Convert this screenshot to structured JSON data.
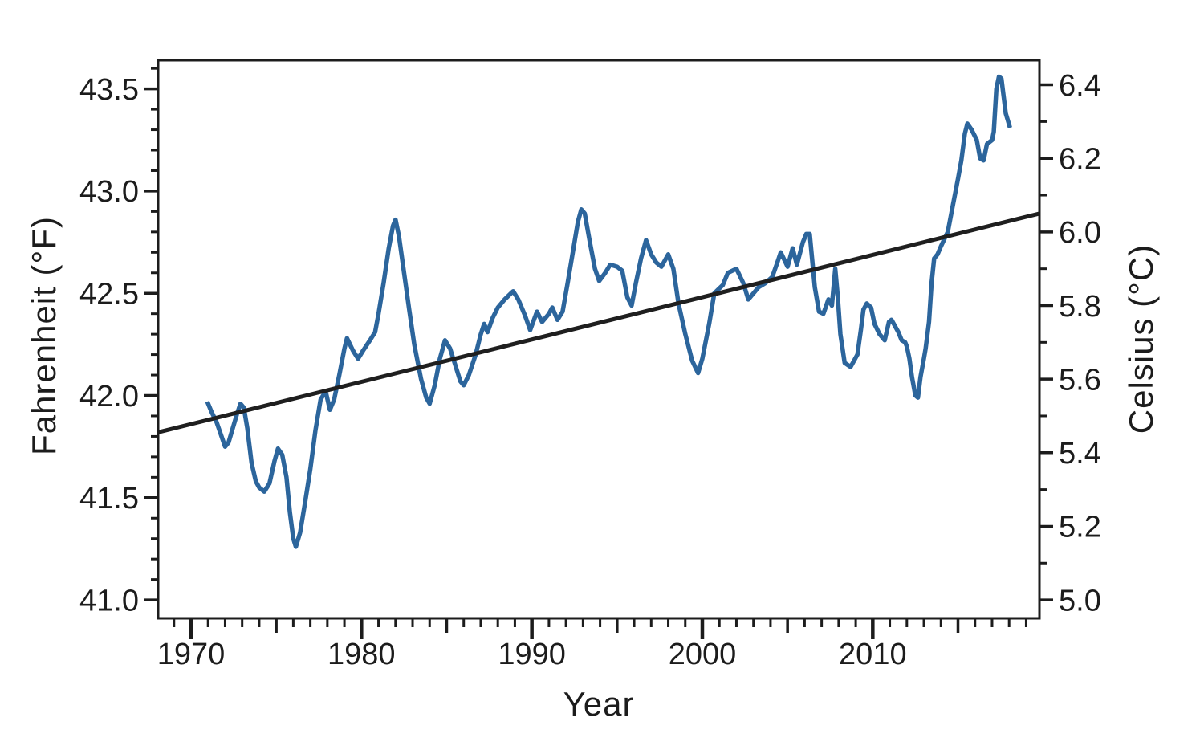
{
  "colors": {
    "background": "#ffffff",
    "axis": "#1c1c1c",
    "text": "#1c1c1c",
    "series_blue": "#2c659c",
    "trend_black": "#1f1f1f"
  },
  "chart_data": {
    "type": "line",
    "title": "",
    "xlabel": "Year",
    "ylabel_left": "Fahrenheit (°F)",
    "ylabel_right": "Celsius (°C)",
    "grid": false,
    "legend": "none",
    "xlim": [
      1968.07,
      2019.78
    ],
    "ylim_fahrenheit": [
      40.91,
      43.64
    ],
    "x_axis": {
      "major_ticks": [
        1970,
        1980,
        1990,
        2000,
        2010
      ],
      "medium_ticks": [
        1975,
        1985,
        1995,
        2005,
        2015
      ],
      "minor_step": 1
    },
    "left_axis": {
      "unit": "°F",
      "major_ticks": [
        41.0,
        41.5,
        42.0,
        42.5,
        43.0,
        43.5
      ],
      "minor_step": 0.1,
      "label_format_decimals": 1
    },
    "right_axis": {
      "unit": "°C",
      "major_ticks": [
        5.0,
        5.2,
        5.4,
        5.6,
        5.8,
        6.0,
        6.2,
        6.4
      ],
      "minor_step": 0.1,
      "label_format_decimals": 1
    },
    "series": [
      {
        "name": "us-temperature-running-mean",
        "color": "#2c659c",
        "width": 5.5,
        "x": [
          1970.95,
          1971.2,
          1971.5,
          1971.75,
          1972.0,
          1972.2,
          1972.45,
          1972.7,
          1972.9,
          1973.1,
          1973.3,
          1973.55,
          1973.8,
          1974.0,
          1974.3,
          1974.6,
          1974.9,
          1975.1,
          1975.35,
          1975.6,
          1975.8,
          1976.0,
          1976.15,
          1976.4,
          1976.7,
          1977.0,
          1977.3,
          1977.6,
          1977.9,
          1978.15,
          1978.4,
          1978.7,
          1979.0,
          1979.15,
          1979.5,
          1979.8,
          1980.1,
          1980.5,
          1980.8,
          1981.0,
          1981.3,
          1981.6,
          1981.85,
          1982.0,
          1982.2,
          1982.5,
          1982.8,
          1983.1,
          1983.5,
          1983.8,
          1984.0,
          1984.3,
          1984.6,
          1984.9,
          1985.2,
          1985.5,
          1985.8,
          1986.0,
          1986.3,
          1986.7,
          1987.0,
          1987.2,
          1987.4,
          1987.7,
          1988.0,
          1988.4,
          1988.9,
          1989.2,
          1989.6,
          1989.9,
          1990.3,
          1990.6,
          1991.0,
          1991.2,
          1991.5,
          1991.8,
          1992.1,
          1992.4,
          1992.7,
          1992.9,
          1993.1,
          1993.4,
          1993.7,
          1993.95,
          1994.3,
          1994.6,
          1995.0,
          1995.3,
          1995.6,
          1995.85,
          1996.1,
          1996.4,
          1996.7,
          1997.0,
          1997.3,
          1997.6,
          1998.0,
          1998.3,
          1998.6,
          1999.0,
          1999.4,
          1999.75,
          2000.0,
          2000.4,
          2000.7,
          2001.2,
          2001.5,
          2002.0,
          2002.4,
          2002.7,
          2003.0,
          2003.3,
          2003.7,
          2004.1,
          2004.4,
          2004.6,
          2005.0,
          2005.3,
          2005.55,
          2005.9,
          2006.1,
          2006.3,
          2006.6,
          2006.85,
          2007.1,
          2007.4,
          2007.6,
          2007.8,
          2007.95,
          2008.1,
          2008.35,
          2008.7,
          2009.1,
          2009.3,
          2009.45,
          2009.65,
          2009.9,
          2010.1,
          2010.4,
          2010.7,
          2010.95,
          2011.1,
          2011.5,
          2011.7,
          2011.9,
          2012.0,
          2012.15,
          2012.3,
          2012.5,
          2012.65,
          2012.8,
          2013.0,
          2013.1,
          2013.3,
          2013.45,
          2013.6,
          2013.8,
          2014.0,
          2014.4,
          2014.7,
          2015.0,
          2015.2,
          2015.4,
          2015.55,
          2015.8,
          2016.1,
          2016.3,
          2016.5,
          2016.7,
          2017.0,
          2017.1,
          2017.25,
          2017.4,
          2017.55,
          2017.7,
          2017.8,
          2017.95,
          2018.05
        ],
        "y_fahrenheit": [
          41.97,
          41.92,
          41.87,
          41.81,
          41.75,
          41.77,
          41.84,
          41.91,
          41.96,
          41.94,
          41.84,
          41.67,
          41.58,
          41.55,
          41.53,
          41.57,
          41.68,
          41.74,
          41.71,
          41.6,
          41.43,
          41.3,
          41.26,
          41.33,
          41.48,
          41.64,
          41.83,
          41.98,
          42.02,
          41.93,
          41.98,
          42.1,
          42.23,
          42.28,
          42.22,
          42.18,
          42.22,
          42.27,
          42.31,
          42.4,
          42.55,
          42.72,
          42.83,
          42.86,
          42.78,
          42.6,
          42.42,
          42.25,
          42.08,
          41.99,
          41.96,
          42.05,
          42.18,
          42.27,
          42.23,
          42.15,
          42.07,
          42.05,
          42.1,
          42.2,
          42.3,
          42.35,
          42.31,
          42.38,
          42.43,
          42.47,
          42.51,
          42.47,
          42.39,
          42.32,
          42.41,
          42.36,
          42.4,
          42.43,
          42.37,
          42.41,
          42.55,
          42.7,
          42.85,
          42.91,
          42.89,
          42.75,
          42.62,
          42.56,
          42.6,
          42.64,
          42.63,
          42.61,
          42.48,
          42.44,
          42.55,
          42.67,
          42.76,
          42.69,
          42.65,
          42.63,
          42.69,
          42.62,
          42.45,
          42.3,
          42.17,
          42.11,
          42.18,
          42.35,
          42.5,
          42.54,
          42.6,
          42.62,
          42.55,
          42.47,
          42.5,
          42.53,
          42.55,
          42.58,
          42.65,
          42.7,
          42.63,
          42.72,
          42.64,
          42.75,
          42.79,
          42.79,
          42.53,
          42.41,
          42.4,
          42.47,
          42.44,
          42.62,
          42.48,
          42.3,
          42.16,
          42.14,
          42.2,
          42.32,
          42.42,
          42.45,
          42.43,
          42.35,
          42.3,
          42.27,
          42.36,
          42.37,
          42.31,
          42.27,
          42.26,
          42.24,
          42.18,
          42.09,
          42.0,
          41.99,
          42.09,
          42.18,
          42.23,
          42.36,
          42.55,
          42.67,
          42.69,
          42.73,
          42.8,
          42.93,
          43.06,
          43.15,
          43.28,
          43.33,
          43.3,
          43.25,
          43.16,
          43.15,
          43.23,
          43.25,
          43.29,
          43.5,
          43.56,
          43.55,
          43.45,
          43.38,
          43.34,
          43.31
        ]
      },
      {
        "name": "linear-trend",
        "color": "#1f1f1f",
        "width": 5,
        "x": [
          1968.07,
          2019.78
        ],
        "y_fahrenheit": [
          41.82,
          42.89
        ]
      }
    ]
  }
}
